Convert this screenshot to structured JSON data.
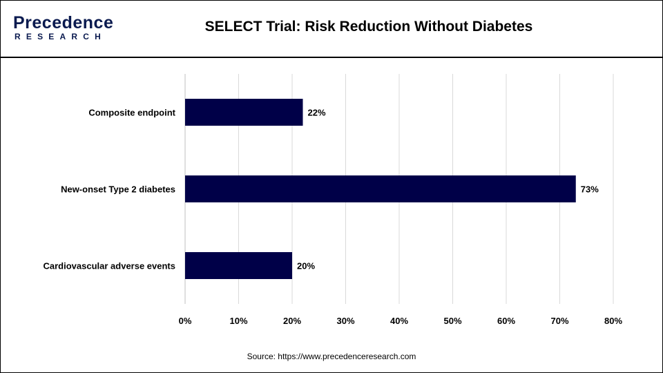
{
  "brand": {
    "name_main": "Precedence",
    "name_sub": "RESEARCH",
    "colors": {
      "navy": "#0a1a4f",
      "bar": "#000048",
      "grid": "#d9d9d9"
    }
  },
  "chart_data": {
    "type": "bar",
    "orientation": "horizontal",
    "title": "SELECT Trial: Risk Reduction Without Diabetes",
    "categories": [
      "Composite endpoint",
      "New-onset Type 2 diabetes",
      "Cardiovascular adverse events"
    ],
    "values": [
      22,
      73,
      20
    ],
    "data_labels": [
      "22%",
      "73%",
      "20%"
    ],
    "x_ticks": [
      "0%",
      "10%",
      "20%",
      "30%",
      "40%",
      "50%",
      "60%",
      "70%",
      "80%"
    ],
    "xlim": [
      0,
      80
    ],
    "xlabel": "",
    "ylabel": "",
    "grid": "vertical",
    "legend": "none",
    "bar_color": "#000048"
  },
  "source": "Source: https://www.precedenceresearch.com"
}
